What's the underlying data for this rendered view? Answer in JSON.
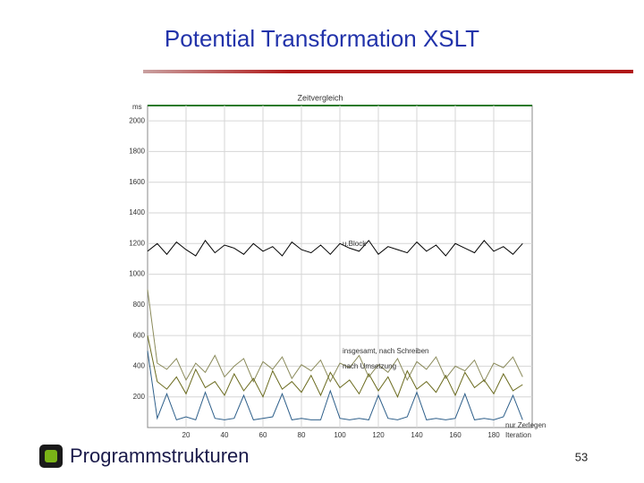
{
  "header": {
    "title": "Potential Transformation XSLT"
  },
  "chart_data": {
    "type": "line",
    "title": "Zeitvergleich",
    "y_label": "ms",
    "x_label": "Iteration",
    "x": [
      0,
      5,
      10,
      15,
      20,
      25,
      30,
      35,
      40,
      45,
      50,
      55,
      60,
      65,
      70,
      75,
      80,
      85,
      90,
      95,
      100,
      105,
      110,
      115,
      120,
      125,
      130,
      135,
      140,
      145,
      150,
      155,
      160,
      165,
      170,
      175,
      180,
      185,
      190,
      195
    ],
    "series": [
      {
        "color": "#000000",
        "values": [
          1150,
          1200,
          1130,
          1210,
          1160,
          1120,
          1220,
          1140,
          1190,
          1170,
          1130,
          1200,
          1150,
          1180,
          1120,
          1210,
          1160,
          1140,
          1190,
          1130,
          1200,
          1170,
          1150,
          1220,
          1130,
          1180,
          1160,
          1140,
          1210,
          1150,
          1190,
          1120,
          1200,
          1170,
          1140,
          1220,
          1150,
          1180,
          1130,
          1200
        ]
      },
      {
        "color": "#8a8a5a",
        "values": [
          900,
          420,
          380,
          450,
          310,
          420,
          360,
          470,
          330,
          400,
          450,
          300,
          430,
          380,
          460,
          320,
          410,
          370,
          440,
          300,
          420,
          390,
          470,
          330,
          410,
          360,
          450,
          310,
          430,
          380,
          460,
          320,
          400,
          370,
          440,
          300,
          420,
          390,
          460,
          330
        ]
      },
      {
        "color": "#6b6b1e",
        "values": [
          600,
          300,
          250,
          330,
          220,
          380,
          260,
          300,
          210,
          350,
          240,
          320,
          200,
          370,
          250,
          300,
          230,
          340,
          210,
          360,
          260,
          310,
          220,
          350,
          240,
          330,
          200,
          370,
          250,
          300,
          230,
          340,
          210,
          360,
          260,
          310,
          220,
          350,
          240,
          280
        ]
      },
      {
        "color": "#2e5f8a",
        "values": [
          500,
          60,
          220,
          50,
          70,
          50,
          230,
          60,
          50,
          60,
          210,
          50,
          60,
          70,
          220,
          50,
          60,
          50,
          50,
          240,
          60,
          50,
          60,
          50,
          210,
          60,
          50,
          70,
          230,
          50,
          60,
          50,
          60,
          220,
          50,
          60,
          50,
          70,
          210,
          50
        ]
      }
    ],
    "annotations": [
      "u.Block",
      "insgesamt, nach Schreiben",
      "nach Umsetzung",
      "nur Zerlegen"
    ],
    "xlim": [
      0,
      200
    ],
    "ylim": [
      0,
      2100
    ],
    "xticks": [
      20,
      40,
      60,
      80,
      100,
      120,
      140,
      160,
      180
    ],
    "yticks": [
      200,
      400,
      600,
      800,
      1000,
      1200,
      1400,
      1600,
      1800,
      2000
    ],
    "grid": true
  },
  "footer": {
    "logo": "Programmstrukturen",
    "page": "53"
  }
}
